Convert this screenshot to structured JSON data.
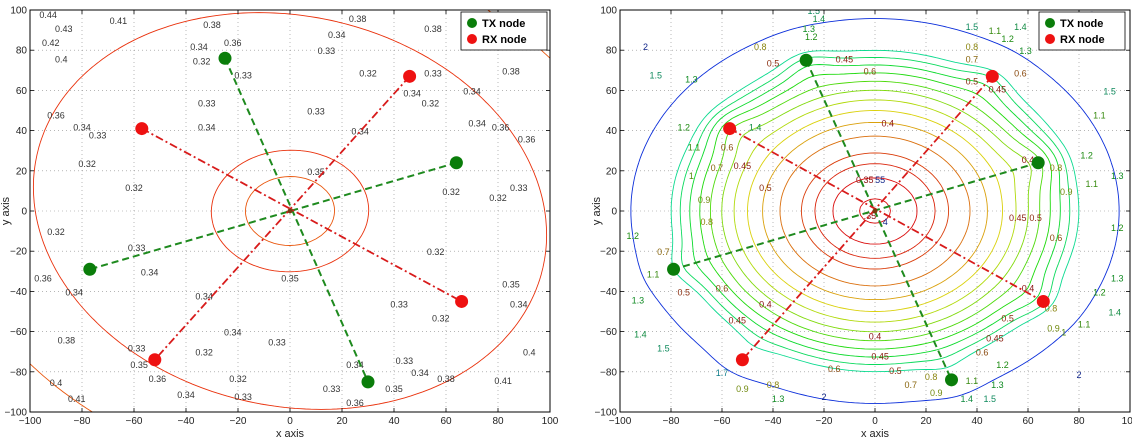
{
  "chart_data": [
    {
      "type": "contour",
      "xlabel": "x axis",
      "ylabel": "y axis",
      "xlim": [
        -100,
        100
      ],
      "ylim": [
        -100,
        100
      ],
      "xticks": [
        "−100",
        "−80",
        "−60",
        "−40",
        "−20",
        "0",
        "20",
        "40",
        "60",
        "80",
        "100"
      ],
      "yticks": [
        "−100",
        "−80",
        "−60",
        "−40",
        "−20",
        "0",
        "20",
        "40",
        "60",
        "80",
        "100"
      ],
      "grid": true,
      "legend_position": "top-right",
      "legend": [
        {
          "label": "TX node",
          "color": "#0a7d0a"
        },
        {
          "label": "RX node",
          "color": "#ee1111"
        }
      ],
      "tx_nodes": [
        [
          -25,
          76
        ],
        [
          64,
          24
        ],
        [
          -77,
          -29
        ],
        [
          30,
          -85
        ]
      ],
      "rx_nodes": [
        [
          -57,
          41
        ],
        [
          46,
          67
        ],
        [
          66,
          -45
        ],
        [
          -52,
          -74
        ]
      ],
      "contour_labels": [
        {
          "x": -93,
          "y": 96,
          "text": "0.44"
        },
        {
          "x": -87,
          "y": 89,
          "text": "0.43"
        },
        {
          "x": -92,
          "y": 82,
          "text": "0.42"
        },
        {
          "x": -66,
          "y": 93,
          "text": "0.41"
        },
        {
          "x": -88,
          "y": 74,
          "text": "0.4"
        },
        {
          "x": -30,
          "y": 91,
          "text": "0.38"
        },
        {
          "x": 26,
          "y": 94,
          "text": "0.38"
        },
        {
          "x": 55,
          "y": 89,
          "text": "0.38"
        },
        {
          "x": 85,
          "y": 68,
          "text": "0.38"
        },
        {
          "x": -22,
          "y": 82,
          "text": "0.36"
        },
        {
          "x": -35,
          "y": 80,
          "text": "0.34"
        },
        {
          "x": 18,
          "y": 86,
          "text": "0.34"
        },
        {
          "x": -34,
          "y": 73,
          "text": "0.32"
        },
        {
          "x": -18,
          "y": 66,
          "text": "0.33"
        },
        {
          "x": 14,
          "y": 78,
          "text": "0.33"
        },
        {
          "x": 30,
          "y": 67,
          "text": "0.32"
        },
        {
          "x": 55,
          "y": 67,
          "text": "0.33"
        },
        {
          "x": 54,
          "y": 52,
          "text": "0.32"
        },
        {
          "x": 47,
          "y": 57,
          "text": "0.34"
        },
        {
          "x": 70,
          "y": 58,
          "text": "0.34"
        },
        {
          "x": 10,
          "y": 48,
          "text": "0.33"
        },
        {
          "x": -32,
          "y": 52,
          "text": "0.33"
        },
        {
          "x": -32,
          "y": 40,
          "text": "0.34"
        },
        {
          "x": -90,
          "y": 46,
          "text": "0.36"
        },
        {
          "x": -80,
          "y": 40,
          "text": "0.34"
        },
        {
          "x": -74,
          "y": 36,
          "text": "0.33"
        },
        {
          "x": -78,
          "y": 22,
          "text": "0.32"
        },
        {
          "x": 27,
          "y": 38,
          "text": "0.34"
        },
        {
          "x": 10,
          "y": 18,
          "text": "0.35"
        },
        {
          "x": -60,
          "y": 10,
          "text": "0.32"
        },
        {
          "x": 72,
          "y": 42,
          "text": "0.34"
        },
        {
          "x": 81,
          "y": 40,
          "text": "0.36"
        },
        {
          "x": 62,
          "y": 8,
          "text": "0.32"
        },
        {
          "x": 80,
          "y": 5,
          "text": "0.32"
        },
        {
          "x": 88,
          "y": 10,
          "text": "0.33"
        },
        {
          "x": 91,
          "y": 34,
          "text": "0.36"
        },
        {
          "x": -90,
          "y": -12,
          "text": "0.32"
        },
        {
          "x": -59,
          "y": -20,
          "text": "0.33"
        },
        {
          "x": -54,
          "y": -32,
          "text": "0.34"
        },
        {
          "x": -95,
          "y": -35,
          "text": "0.36"
        },
        {
          "x": -83,
          "y": -42,
          "text": "0.34"
        },
        {
          "x": -33,
          "y": -44,
          "text": "0.34"
        },
        {
          "x": 0,
          "y": -35,
          "text": "0.35"
        },
        {
          "x": 56,
          "y": -22,
          "text": "0.32"
        },
        {
          "x": 85,
          "y": -38,
          "text": "0.35"
        },
        {
          "x": 88,
          "y": -48,
          "text": "0.34"
        },
        {
          "x": 42,
          "y": -48,
          "text": "0.33"
        },
        {
          "x": 58,
          "y": -55,
          "text": "0.32"
        },
        {
          "x": -22,
          "y": -62,
          "text": "0.34"
        },
        {
          "x": -5,
          "y": -67,
          "text": "0.33"
        },
        {
          "x": -33,
          "y": -72,
          "text": "0.32"
        },
        {
          "x": -59,
          "y": -70,
          "text": "0.33"
        },
        {
          "x": -58,
          "y": -78,
          "text": "0.35"
        },
        {
          "x": -86,
          "y": -66,
          "text": "0.38"
        },
        {
          "x": -51,
          "y": -85,
          "text": "0.36"
        },
        {
          "x": -40,
          "y": -93,
          "text": "0.34"
        },
        {
          "x": -20,
          "y": -85,
          "text": "0.32"
        },
        {
          "x": -18,
          "y": -94,
          "text": "0.33"
        },
        {
          "x": 25,
          "y": -78,
          "text": "0.34"
        },
        {
          "x": 44,
          "y": -76,
          "text": "0.33"
        },
        {
          "x": 50,
          "y": -82,
          "text": "0.34"
        },
        {
          "x": 40,
          "y": -90,
          "text": "0.35"
        },
        {
          "x": 16,
          "y": -90,
          "text": "0.33"
        },
        {
          "x": 25,
          "y": -97,
          "text": "0.36"
        },
        {
          "x": 60,
          "y": -85,
          "text": "0.38"
        },
        {
          "x": 92,
          "y": -72,
          "text": "0.4"
        },
        {
          "x": 82,
          "y": -86,
          "text": "0.41"
        },
        {
          "x": -90,
          "y": -87,
          "text": "0.4"
        },
        {
          "x": -82,
          "y": -95,
          "text": "0.41"
        }
      ]
    },
    {
      "type": "contour",
      "xlabel": "x axis",
      "ylabel": "y axis",
      "xlim": [
        -100,
        100
      ],
      "ylim": [
        -100,
        100
      ],
      "xticks": [
        "−100",
        "−80",
        "−60",
        "−40",
        "−20",
        "0",
        "20",
        "40",
        "60",
        "80",
        "100"
      ],
      "yticks": [
        "−100",
        "−80",
        "−60",
        "−40",
        "−20",
        "0",
        "20",
        "40",
        "60",
        "80",
        "100"
      ],
      "grid": true,
      "legend_position": "top-right",
      "legend": [
        {
          "label": "TX node",
          "color": "#0a7d0a"
        },
        {
          "label": "RX node",
          "color": "#ee1111"
        }
      ],
      "tx_nodes": [
        [
          -27,
          75
        ],
        [
          64,
          24
        ],
        [
          -79,
          -29
        ],
        [
          30,
          -84
        ]
      ],
      "rx_nodes": [
        [
          -57,
          41
        ],
        [
          46,
          67
        ],
        [
          66,
          -45
        ],
        [
          -52,
          -74
        ]
      ],
      "contour_labels": [
        {
          "x": -90,
          "y": 80,
          "text": "2"
        },
        {
          "x": -86,
          "y": 66,
          "text": "1.5"
        },
        {
          "x": -72,
          "y": 64,
          "text": "1.3"
        },
        {
          "x": -75,
          "y": 40,
          "text": "1.2"
        },
        {
          "x": -71,
          "y": 30,
          "text": "1.1"
        },
        {
          "x": -72,
          "y": 16,
          "text": "1"
        },
        {
          "x": -67,
          "y": 4,
          "text": "0.9"
        },
        {
          "x": -66,
          "y": -7,
          "text": "0.8"
        },
        {
          "x": -62,
          "y": 20,
          "text": "0.7"
        },
        {
          "x": -47,
          "y": 40,
          "text": "1.4"
        },
        {
          "x": -58,
          "y": 30,
          "text": "0.6"
        },
        {
          "x": -52,
          "y": 21,
          "text": "0.45"
        },
        {
          "x": -43,
          "y": 10,
          "text": "0.5"
        },
        {
          "x": -95,
          "y": -14,
          "text": "1.2"
        },
        {
          "x": -83,
          "y": -22,
          "text": "0.7"
        },
        {
          "x": -87,
          "y": -33,
          "text": "1.1"
        },
        {
          "x": -75,
          "y": -42,
          "text": "0.5"
        },
        {
          "x": -60,
          "y": -40,
          "text": "0.6"
        },
        {
          "x": -54,
          "y": -56,
          "text": "0.45"
        },
        {
          "x": -43,
          "y": -48,
          "text": "0.4"
        },
        {
          "x": -93,
          "y": -46,
          "text": "1.3"
        },
        {
          "x": -92,
          "y": -63,
          "text": "1.4"
        },
        {
          "x": -83,
          "y": -70,
          "text": "1.5"
        },
        {
          "x": -60,
          "y": -82,
          "text": "1.7"
        },
        {
          "x": -52,
          "y": -90,
          "text": "0.9"
        },
        {
          "x": -40,
          "y": -88,
          "text": "0.8"
        },
        {
          "x": -38,
          "y": -95,
          "text": "1.3"
        },
        {
          "x": -16,
          "y": -80,
          "text": "0.6"
        },
        {
          "x": -20,
          "y": -94,
          "text": "2"
        },
        {
          "x": 0,
          "y": -64,
          "text": "0.4"
        },
        {
          "x": 2,
          "y": -74,
          "text": "0.45"
        },
        {
          "x": 8,
          "y": -81,
          "text": "0.5"
        },
        {
          "x": 22,
          "y": -84,
          "text": "0.8"
        },
        {
          "x": 14,
          "y": -88,
          "text": "0.7"
        },
        {
          "x": 24,
          "y": -92,
          "text": "0.9"
        },
        {
          "x": 38,
          "y": -86,
          "text": "1.1"
        },
        {
          "x": 48,
          "y": -88,
          "text": "1.3"
        },
        {
          "x": 50,
          "y": -78,
          "text": "1.2"
        },
        {
          "x": 36,
          "y": -95,
          "text": "1.4"
        },
        {
          "x": 45,
          "y": -95,
          "text": "1.5"
        },
        {
          "x": 80,
          "y": -83,
          "text": "2"
        },
        {
          "x": 42,
          "y": -72,
          "text": "0.6"
        },
        {
          "x": 47,
          "y": -65,
          "text": "0.45"
        },
        {
          "x": 52,
          "y": -55,
          "text": "0.5"
        },
        {
          "x": 60,
          "y": -40,
          "text": "0.4"
        },
        {
          "x": 69,
          "y": -50,
          "text": "0.8"
        },
        {
          "x": 70,
          "y": -60,
          "text": "0.9"
        },
        {
          "x": 74,
          "y": -62,
          "text": "1"
        },
        {
          "x": 82,
          "y": -58,
          "text": "1.1"
        },
        {
          "x": 88,
          "y": -42,
          "text": "1.2"
        },
        {
          "x": 94,
          "y": -52,
          "text": "1.4"
        },
        {
          "x": 95,
          "y": -35,
          "text": "1.3"
        },
        {
          "x": 56,
          "y": -5,
          "text": "0.45"
        },
        {
          "x": 63,
          "y": -5,
          "text": "0.5"
        },
        {
          "x": 71,
          "y": -15,
          "text": "0.6"
        },
        {
          "x": 71,
          "y": 20,
          "text": "0.8"
        },
        {
          "x": 75,
          "y": 8,
          "text": "0.9"
        },
        {
          "x": 85,
          "y": 12,
          "text": "1.1"
        },
        {
          "x": 83,
          "y": 26,
          "text": "1.2"
        },
        {
          "x": 88,
          "y": 46,
          "text": "1.1"
        },
        {
          "x": 95,
          "y": 16,
          "text": "1.3"
        },
        {
          "x": 60,
          "y": 24,
          "text": "0.4"
        },
        {
          "x": 38,
          "y": 63,
          "text": "0.5"
        },
        {
          "x": 48,
          "y": 59,
          "text": "0.45"
        },
        {
          "x": 57,
          "y": 67,
          "text": "0.6"
        },
        {
          "x": 38,
          "y": 80,
          "text": "0.8"
        },
        {
          "x": 38,
          "y": 74,
          "text": "0.7"
        },
        {
          "x": 47,
          "y": 88,
          "text": "1.1"
        },
        {
          "x": 52,
          "y": 84,
          "text": "1.2"
        },
        {
          "x": 59,
          "y": 78,
          "text": "1.3"
        },
        {
          "x": 57,
          "y": 90,
          "text": "1.4"
        },
        {
          "x": 38,
          "y": 90,
          "text": "1.5"
        },
        {
          "x": 5,
          "y": 42,
          "text": "0.4"
        },
        {
          "x": -2,
          "y": 68,
          "text": "0.6"
        },
        {
          "x": -12,
          "y": 74,
          "text": "0.45"
        },
        {
          "x": -25,
          "y": 85,
          "text": "1.2"
        },
        {
          "x": -26,
          "y": 89,
          "text": "1.3"
        },
        {
          "x": -22,
          "y": 94,
          "text": "1.4"
        },
        {
          "x": -24,
          "y": 98,
          "text": "1.5"
        },
        {
          "x": -40,
          "y": 72,
          "text": "0.5"
        },
        {
          "x": -45,
          "y": 80,
          "text": "0.8"
        },
        {
          "x": 85,
          "y": 96,
          "text": "2"
        },
        {
          "x": 92,
          "y": 58,
          "text": "1.5"
        },
        {
          "x": 95,
          "y": -10,
          "text": "1.2"
        },
        {
          "x": -4,
          "y": 14,
          "text": "0.35"
        },
        {
          "x": 2,
          "y": 14,
          "text": "55"
        },
        {
          "x": -2,
          "y": -4,
          "text": ".35"
        },
        {
          "x": 4,
          "y": -7,
          "text": "4"
        }
      ]
    }
  ]
}
